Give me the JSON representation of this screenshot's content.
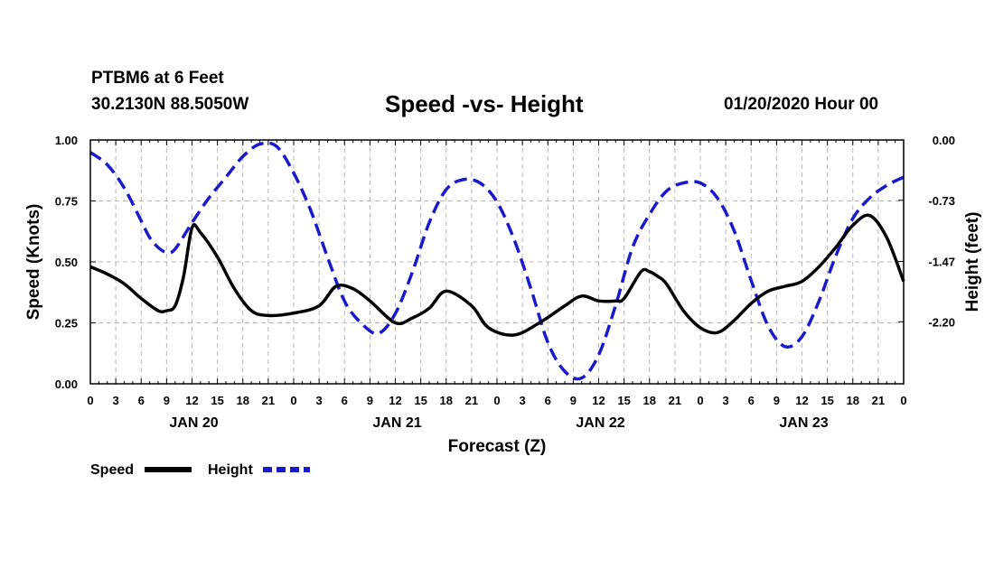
{
  "header": {
    "station": "PTBM6 at 6 Feet",
    "coords": "30.2130N 88.5050W",
    "title": "Speed -vs- Height",
    "timestamp": "01/20/2020 Hour 00"
  },
  "chart_data": {
    "type": "line",
    "title": "Speed -vs- Height",
    "xlabel": "Forecast (Z)",
    "ylabel": "Speed (Knots)",
    "y2label": "Height (feet)",
    "xlim": [
      0,
      96
    ],
    "ylim": [
      0,
      1
    ],
    "y2lim": [
      -2.95,
      0
    ],
    "grid": true,
    "x_tick_labels": [
      "0",
      "3",
      "6",
      "9",
      "12",
      "15",
      "18",
      "21",
      "0",
      "3",
      "6",
      "9",
      "12",
      "15",
      "18",
      "21",
      "0",
      "3",
      "6",
      "9",
      "12",
      "15",
      "18",
      "21",
      "0",
      "3",
      "6",
      "9",
      "12",
      "15",
      "18",
      "21",
      "0"
    ],
    "day_labels": [
      {
        "hour": 12,
        "label": "JAN 20"
      },
      {
        "hour": 36,
        "label": "JAN 21"
      },
      {
        "hour": 60,
        "label": "JAN 22"
      },
      {
        "hour": 84,
        "label": "JAN 23"
      }
    ],
    "y_ticks": [
      {
        "value": 0.0,
        "label": "0.00"
      },
      {
        "value": 0.25,
        "label": "0.25"
      },
      {
        "value": 0.5,
        "label": "0.50"
      },
      {
        "value": 0.75,
        "label": "0.75"
      },
      {
        "value": 1.0,
        "label": "1.00"
      }
    ],
    "y2_ticks": [
      {
        "value": 0.0,
        "label": "0.00"
      },
      {
        "value": -0.73,
        "label": "-0.73"
      },
      {
        "value": -1.47,
        "label": "-1.47"
      },
      {
        "value": -2.2,
        "label": "-2.20"
      }
    ],
    "legend": [
      "Speed",
      "Height"
    ],
    "series": [
      {
        "name": "Speed",
        "axis": "left",
        "color": "#000000",
        "dash": "solid",
        "x": [
          0,
          2,
          4,
          6,
          8,
          9,
          10,
          11,
          12,
          13,
          15,
          17,
          19,
          21,
          24,
          27,
          29,
          31,
          33,
          36,
          38,
          40,
          42,
          45,
          47,
          50,
          53,
          56,
          58,
          60,
          62,
          63,
          65,
          66,
          67,
          68,
          70,
          72,
          74,
          76,
          78,
          80,
          82,
          84,
          86,
          88,
          90,
          92,
          94,
          96
        ],
        "y": [
          0.48,
          0.45,
          0.41,
          0.35,
          0.3,
          0.3,
          0.32,
          0.44,
          0.64,
          0.62,
          0.52,
          0.39,
          0.3,
          0.28,
          0.29,
          0.32,
          0.4,
          0.39,
          0.34,
          0.25,
          0.27,
          0.31,
          0.38,
          0.32,
          0.23,
          0.2,
          0.25,
          0.32,
          0.36,
          0.34,
          0.34,
          0.35,
          0.46,
          0.46,
          0.44,
          0.41,
          0.3,
          0.23,
          0.21,
          0.26,
          0.33,
          0.38,
          0.4,
          0.42,
          0.48,
          0.56,
          0.65,
          0.69,
          0.6,
          0.42
        ]
      },
      {
        "name": "Height",
        "axis": "right",
        "color": "#1a1acc",
        "dash": "dashed",
        "x": [
          0,
          2,
          4,
          6,
          7,
          8,
          9,
          10,
          12,
          14,
          16,
          18,
          20,
          22,
          24,
          26,
          28,
          30,
          32,
          34,
          36,
          38,
          40,
          42,
          44,
          46,
          48,
          50,
          52,
          54,
          56,
          58,
          60,
          62,
          64,
          66,
          68,
          70,
          72,
          74,
          76,
          78,
          80,
          82,
          84,
          86,
          88,
          90,
          92,
          94,
          96
        ],
        "y": [
          -0.15,
          -0.3,
          -0.58,
          -0.98,
          -1.18,
          -1.3,
          -1.36,
          -1.32,
          -1.0,
          -0.7,
          -0.45,
          -0.2,
          -0.05,
          -0.08,
          -0.4,
          -0.85,
          -1.42,
          -1.95,
          -2.22,
          -2.34,
          -2.1,
          -1.6,
          -1.0,
          -0.6,
          -0.48,
          -0.52,
          -0.75,
          -1.2,
          -1.8,
          -2.45,
          -2.8,
          -2.88,
          -2.6,
          -2.0,
          -1.3,
          -0.9,
          -0.62,
          -0.52,
          -0.52,
          -0.7,
          -1.1,
          -1.7,
          -2.25,
          -2.5,
          -2.38,
          -1.95,
          -1.4,
          -0.95,
          -0.7,
          -0.55,
          -0.45
        ]
      }
    ]
  }
}
